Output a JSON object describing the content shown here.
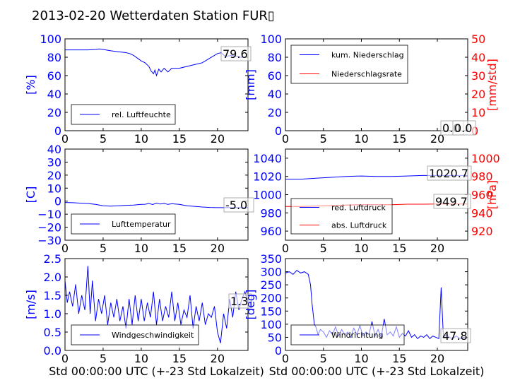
{
  "page_title": "2013-02-20 Wetterdaten Station FUR▯",
  "chart_data": [
    {
      "id": "humidity",
      "type": "line",
      "ylabel": "[%]",
      "ylim": [
        0,
        100
      ],
      "yticks": [
        0,
        20,
        40,
        60,
        80,
        100
      ],
      "xlim": [
        0,
        24
      ],
      "xticks": [
        0,
        5,
        10,
        15,
        20
      ],
      "grid": false,
      "legend_position": "bottom-left",
      "current_value": "79.6",
      "series": [
        {
          "name": "rel. Luftfeuchte",
          "color": "#0000ff",
          "axis": "left",
          "x": [
            0,
            1,
            2,
            3,
            4,
            4.5,
            5,
            6,
            7,
            8,
            8.5,
            9,
            9.5,
            10,
            10.5,
            11,
            11.3,
            11.6,
            11.8,
            12,
            12.3,
            12.6,
            13,
            13.5,
            14,
            15,
            16,
            17,
            18,
            19,
            20,
            20.5,
            21,
            22,
            23,
            24
          ],
          "y": [
            88,
            88,
            88,
            88,
            88.5,
            89,
            88.5,
            87,
            86,
            85,
            84,
            82,
            79,
            76,
            74,
            70,
            65,
            62,
            66,
            60,
            67,
            64,
            68,
            64,
            68,
            68,
            70,
            72,
            74,
            79,
            84,
            85,
            81,
            82,
            80,
            80
          ]
        }
      ]
    },
    {
      "id": "precip",
      "type": "line",
      "ylabel": "[mm]",
      "ylim": [
        0,
        100
      ],
      "yticks": [
        0,
        20,
        40,
        60,
        80,
        100
      ],
      "y2label": "[mm/std]",
      "y2lim": [
        0,
        50
      ],
      "y2ticks": [
        0,
        10,
        20,
        30,
        40,
        50
      ],
      "xlim": [
        0,
        24
      ],
      "xticks": [
        0,
        5,
        10,
        15,
        20
      ],
      "grid": false,
      "legend_position": "top-left",
      "current_value": "0.0",
      "current_value2": "0.0",
      "series": [
        {
          "name": "kum. Niederschlag",
          "color": "#0000ff",
          "axis": "left",
          "x": [
            0,
            24
          ],
          "y": [
            0,
            0
          ]
        },
        {
          "name": "Niederschlagsrate",
          "color": "#ff0000",
          "axis": "right",
          "x": [
            0,
            24
          ],
          "y": [
            0,
            0
          ]
        }
      ]
    },
    {
      "id": "temperature",
      "type": "line",
      "ylabel": "[C]",
      "ylim": [
        -30,
        40
      ],
      "yticks": [
        -30,
        -20,
        -10,
        0,
        10,
        20,
        30,
        40
      ],
      "xlim": [
        0,
        24
      ],
      "xticks": [
        0,
        5,
        10,
        15,
        20
      ],
      "grid": false,
      "legend_position": "bottom-left",
      "current_value": "-5.0",
      "series": [
        {
          "name": "Lufttemperatur",
          "color": "#0000ff",
          "axis": "left",
          "x": [
            0,
            1,
            2,
            3,
            4,
            5,
            6,
            7,
            8,
            9,
            10,
            10.5,
            11,
            11.5,
            12,
            12.5,
            13,
            13.5,
            14,
            15,
            16,
            17,
            18,
            19,
            20,
            21,
            22,
            23,
            24
          ],
          "y": [
            -1,
            -1.2,
            -1.5,
            -1.8,
            -2.5,
            -3.5,
            -3.8,
            -3.5,
            -3.2,
            -3,
            -2.5,
            -2.4,
            -1.8,
            -2.6,
            -1.5,
            -2.2,
            -1.8,
            -2.5,
            -2,
            -2.5,
            -3.5,
            -4,
            -4.5,
            -4.8,
            -5,
            -5,
            -5,
            -5,
            -5
          ]
        }
      ]
    },
    {
      "id": "pressure",
      "type": "line",
      "ylabel": "",
      "ylim": [
        950,
        1050
      ],
      "yticks": [
        960,
        980,
        1000,
        1020,
        1040
      ],
      "y2label": "[hPa]",
      "y2lim": [
        910,
        1010
      ],
      "y2ticks": [
        920,
        940,
        960,
        980,
        1000
      ],
      "xlim": [
        0,
        24
      ],
      "xticks": [
        0,
        5,
        10,
        15,
        20
      ],
      "grid": false,
      "legend_position": "bottom-left",
      "current_value": "1020.7",
      "current_value2": "949.7",
      "series": [
        {
          "name": "red. Luftdruck",
          "color": "#0000ff",
          "axis": "left",
          "x": [
            0,
            2,
            4,
            6,
            8,
            10,
            12,
            14,
            16,
            18,
            20,
            22,
            24
          ],
          "y": [
            1017,
            1017,
            1018,
            1019,
            1020,
            1020.5,
            1020,
            1020,
            1020.5,
            1021,
            1021,
            1021,
            1021
          ]
        }
      ],
      "series2": [
        {
          "name": "abs. Luftdruck",
          "color": "#ff0000",
          "axis": "right",
          "x": [
            0,
            2,
            4,
            6,
            8,
            10,
            12,
            14,
            16,
            18,
            20,
            22,
            24
          ],
          "y": [
            947,
            947,
            947.5,
            948,
            948.5,
            949,
            949,
            949,
            949.5,
            949.5,
            949.7,
            949.7,
            949.7
          ]
        }
      ]
    },
    {
      "id": "windspeed",
      "type": "line",
      "ylabel": "[m/s]",
      "ylim": [
        0,
        2.5
      ],
      "yticks": [
        0.0,
        0.5,
        1.0,
        1.5,
        2.0,
        2.5
      ],
      "xlabel": "Std 00:00:00 UTC (+-23 Std Lokalzeit)",
      "xlim": [
        0,
        24
      ],
      "xticks": [
        0,
        5,
        10,
        15,
        20
      ],
      "grid": false,
      "legend_position": "bottom-left",
      "current_value": "1.3",
      "series": [
        {
          "name": "Windgeschwindigkeit",
          "color": "#0000ff",
          "axis": "left",
          "x": [
            0,
            0.3,
            0.6,
            1,
            1.4,
            1.8,
            2.2,
            2.6,
            3,
            3.3,
            3.6,
            4,
            4.4,
            4.8,
            5.2,
            5.6,
            6,
            6.4,
            6.8,
            7.2,
            7.6,
            8,
            8.4,
            8.8,
            9.2,
            9.6,
            10,
            10.4,
            10.8,
            11.2,
            11.6,
            12,
            12.4,
            12.8,
            13.2,
            13.6,
            14,
            14.4,
            14.8,
            15.2,
            15.6,
            16,
            16.4,
            16.8,
            17.2,
            17.6,
            18,
            18.4,
            18.8,
            19.2,
            19.6,
            20,
            20.4,
            20.8,
            21.2,
            21.6,
            22,
            22.4,
            22.8,
            23.2,
            23.6,
            24
          ],
          "y": [
            1.9,
            1.3,
            1.6,
            1.2,
            1.8,
            1.0,
            1.5,
            1.1,
            2.3,
            1.0,
            1.9,
            0.8,
            1.4,
            1.0,
            1.5,
            0.7,
            1.3,
            0.9,
            1.4,
            0.8,
            1.2,
            0.6,
            1.4,
            0.7,
            1.5,
            0.8,
            1.4,
            0.8,
            1.3,
            0.9,
            1.6,
            0.7,
            1.4,
            0.8,
            1.2,
            0.9,
            1.6,
            0.8,
            1.3,
            0.7,
            1.1,
            0.9,
            1.5,
            0.6,
            1.2,
            0.8,
            1.3,
            0.7,
            1.0,
            0.9,
            1.2,
            0.5,
            0.2,
            1.0,
            0.6,
            1.4,
            0.9,
            1.6,
            1.1,
            1.4,
            1.6,
            1.3
          ]
        }
      ]
    },
    {
      "id": "winddir",
      "type": "line",
      "ylabel": "[deg]",
      "ylim": [
        0,
        350
      ],
      "yticks": [
        0,
        50,
        100,
        150,
        200,
        250,
        300,
        350
      ],
      "xlabel": "Std 00:00:00 UTC (+-23 Std Lokalzeit)",
      "xlim": [
        0,
        24
      ],
      "xticks": [
        0,
        5,
        10,
        15,
        20
      ],
      "grid": false,
      "legend_position": "bottom-left",
      "current_value": "47.8",
      "series": [
        {
          "name": "Windrichtung",
          "color": "#0000ff",
          "axis": "left",
          "x": [
            0,
            0.5,
            1,
            1.5,
            2,
            2.5,
            3,
            3.3,
            3.5,
            3.8,
            4,
            4.3,
            4.6,
            5,
            5.4,
            5.8,
            6.2,
            6.6,
            7,
            7.4,
            7.8,
            8.2,
            8.6,
            9,
            9.4,
            9.8,
            10.2,
            10.6,
            11,
            11.4,
            11.8,
            12.2,
            12.6,
            13,
            13.4,
            13.8,
            14.2,
            14.6,
            15,
            15.4,
            15.8,
            16.2,
            16.6,
            17,
            17.4,
            17.8,
            18.2,
            18.6,
            19,
            19.4,
            19.8,
            20.2,
            20.5,
            20.8,
            21.2,
            21.6,
            22,
            22.5,
            23,
            23.5,
            24
          ],
          "y": [
            295,
            300,
            290,
            305,
            295,
            300,
            290,
            250,
            180,
            100,
            90,
            60,
            80,
            70,
            50,
            75,
            60,
            90,
            55,
            80,
            60,
            70,
            50,
            85,
            60,
            95,
            55,
            70,
            60,
            110,
            55,
            80,
            50,
            120,
            60,
            70,
            55,
            90,
            50,
            65,
            55,
            75,
            50,
            60,
            45,
            55,
            50,
            60,
            45,
            55,
            50,
            45,
            240,
            50,
            60,
            50,
            45,
            55,
            45,
            50,
            48
          ]
        }
      ]
    }
  ]
}
